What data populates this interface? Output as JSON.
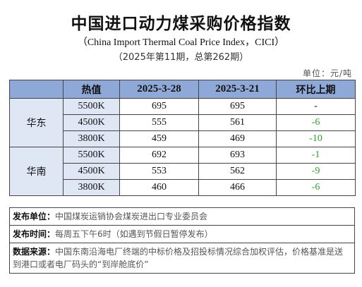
{
  "title": "中国进口动力煤采购价格指数",
  "subtitle_en": "（China Import Thermal Coal Price Index，CICI）",
  "subtitle_cn": "（2025年第11期，总第262期）",
  "unit": "单位：元/吨",
  "table": {
    "headers": [
      "",
      "热值",
      "2025-3-28",
      "2025-3-21",
      "环比上期"
    ],
    "regions": [
      {
        "name": "华东",
        "rows": [
          {
            "grade": "5500K",
            "cur": "695",
            "prev": "695",
            "chg": "-"
          },
          {
            "grade": "4500K",
            "cur": "555",
            "prev": "561",
            "chg": "-6"
          },
          {
            "grade": "3800K",
            "cur": "459",
            "prev": "469",
            "chg": "-10"
          }
        ]
      },
      {
        "name": "华南",
        "rows": [
          {
            "grade": "5500K",
            "cur": "692",
            "prev": "693",
            "chg": "-1"
          },
          {
            "grade": "4500K",
            "cur": "553",
            "prev": "562",
            "chg": "-9"
          },
          {
            "grade": "3800K",
            "cur": "460",
            "prev": "466",
            "chg": "-6"
          }
        ]
      }
    ]
  },
  "notes": {
    "publisher_label": "发布单位：",
    "publisher_text": "中国煤炭运销协会煤炭进出口专业委员会",
    "time_label": "发布时间：",
    "time_text": "每周五下午6时（如遇到节假日暂停发布）",
    "source_label": "数据来源：",
    "source_text": "中国东南沿海电厂终端的中标价格及招投标情况综合加权评估，价格基准是送到港口或者电厂码头的“到岸舱底价”"
  },
  "colors": {
    "header_bg": "#8ea9d8",
    "row_bg": "#dfe7f5",
    "change_green": "#2aa52a"
  }
}
